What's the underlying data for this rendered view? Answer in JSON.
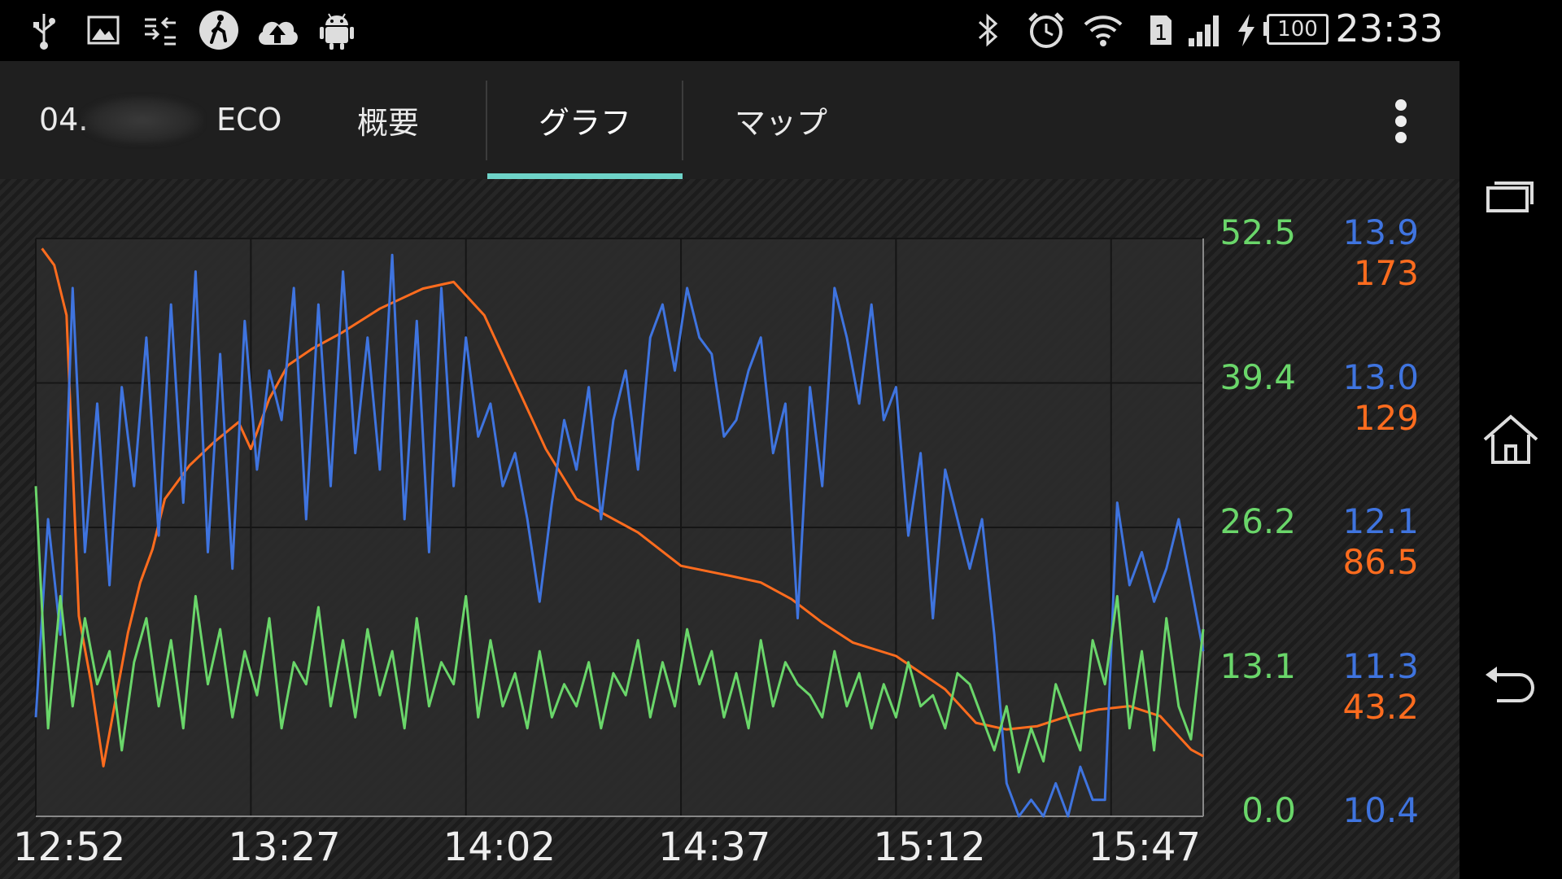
{
  "status_bar": {
    "time": "23:33",
    "battery": "100",
    "sim": "1",
    "icons_left": [
      "usb-icon",
      "image-icon",
      "data-sync-icon",
      "walk-icon",
      "cloud-upload-icon",
      "android-icon"
    ],
    "icons_right": [
      "bluetooth-icon",
      "alarm-icon",
      "wifi-icon",
      "sim-icon",
      "signal-icon",
      "charging-icon",
      "battery-icon"
    ]
  },
  "action_bar": {
    "id_text": "04.",
    "tabs": [
      {
        "label": "ECO"
      },
      {
        "label": "概要"
      },
      {
        "label": "グラフ"
      },
      {
        "label": "マップ"
      }
    ],
    "selected_tab": 2
  },
  "colors": {
    "green": "#6ad66a",
    "blue": "#3f74df",
    "orange": "#ff6c1e",
    "indicator": "#6ed3c8"
  },
  "chart_data": {
    "type": "line",
    "x_ticks": [
      "12:52",
      "13:27",
      "14:02",
      "14:37",
      "15:12",
      "15:47"
    ],
    "xlim": [
      "12:52",
      "16:02"
    ],
    "y_axes": [
      {
        "color": "green",
        "ticks": [
          "52.5",
          "39.4",
          "26.2",
          "13.1",
          "0.0"
        ],
        "range": [
          0,
          52.5
        ]
      },
      {
        "color": "blue",
        "ticks": [
          "13.9",
          "13.0",
          "12.1",
          "11.3",
          "10.4"
        ],
        "range": [
          10.4,
          13.9
        ]
      },
      {
        "color": "orange",
        "ticks": [
          "173",
          "129",
          "86.5",
          "43.2"
        ],
        "range": [
          0,
          173
        ]
      }
    ],
    "grid": true,
    "series": [
      {
        "color": "orange",
        "x": [
          "12:53",
          "12:55",
          "12:57",
          "12:59",
          "13:01",
          "13:03",
          "13:05",
          "13:07",
          "13:09",
          "13:11",
          "13:13",
          "13:17",
          "13:21",
          "13:25",
          "13:27",
          "13:30",
          "13:33",
          "13:37",
          "13:42",
          "13:48",
          "13:55",
          "14:00",
          "14:05",
          "14:10",
          "14:15",
          "14:20",
          "14:30",
          "14:37",
          "14:45",
          "14:50",
          "14:55",
          "15:00",
          "15:05",
          "15:12",
          "15:20",
          "15:25",
          "15:30",
          "15:35",
          "15:40",
          "15:45",
          "15:50",
          "15:55",
          "16:00",
          "16:02"
        ],
        "values": [
          170,
          165,
          150,
          60,
          40,
          15,
          35,
          55,
          70,
          80,
          95,
          105,
          112,
          118,
          110,
          125,
          135,
          140,
          145,
          152,
          158,
          160,
          150,
          130,
          110,
          95,
          85,
          75,
          72,
          70,
          65,
          58,
          52,
          48,
          38,
          28,
          26,
          27,
          30,
          32,
          33,
          30,
          20,
          18
        ]
      },
      {
        "color": "blue",
        "x": [
          "12:52",
          "12:54",
          "12:56",
          "12:58",
          "13:00",
          "13:02",
          "13:04",
          "13:06",
          "13:08",
          "13:10",
          "13:12",
          "13:14",
          "13:16",
          "13:18",
          "13:20",
          "13:22",
          "13:24",
          "13:26",
          "13:28",
          "13:30",
          "13:32",
          "13:34",
          "13:36",
          "13:38",
          "13:40",
          "13:42",
          "13:44",
          "13:46",
          "13:48",
          "13:50",
          "13:52",
          "13:54",
          "13:56",
          "13:58",
          "14:00",
          "14:02",
          "14:04",
          "14:06",
          "14:08",
          "14:10",
          "14:12",
          "14:14",
          "14:16",
          "14:18",
          "14:20",
          "14:22",
          "14:24",
          "14:26",
          "14:28",
          "14:30",
          "14:32",
          "14:34",
          "14:36",
          "14:38",
          "14:40",
          "14:42",
          "14:44",
          "14:46",
          "14:48",
          "14:50",
          "14:52",
          "14:54",
          "14:56",
          "14:58",
          "15:00",
          "15:02",
          "15:04",
          "15:06",
          "15:08",
          "15:10",
          "15:12",
          "15:14",
          "15:16",
          "15:18",
          "15:20",
          "15:22",
          "15:24",
          "15:26",
          "15:28",
          "15:30",
          "15:32",
          "15:34",
          "15:36",
          "15:38",
          "15:40",
          "15:42",
          "15:44",
          "15:46",
          "15:48",
          "15:50",
          "15:52",
          "15:54",
          "15:56",
          "15:58",
          "16:00",
          "16:02"
        ],
        "values": [
          11.0,
          12.2,
          11.5,
          13.6,
          12.0,
          12.9,
          11.8,
          13.0,
          12.4,
          13.3,
          12.1,
          13.5,
          12.3,
          13.7,
          12.0,
          13.2,
          11.9,
          13.4,
          12.5,
          13.1,
          12.8,
          13.6,
          12.2,
          13.5,
          12.4,
          13.7,
          12.6,
          13.3,
          12.5,
          13.8,
          12.2,
          13.4,
          12.0,
          13.6,
          12.4,
          13.3,
          12.7,
          12.9,
          12.4,
          12.6,
          12.2,
          11.7,
          12.3,
          12.8,
          12.5,
          13.0,
          12.2,
          12.8,
          13.1,
          12.5,
          13.3,
          13.5,
          13.1,
          13.6,
          13.3,
          13.2,
          12.7,
          12.8,
          13.1,
          13.3,
          12.6,
          12.9,
          11.6,
          13.0,
          12.4,
          13.6,
          13.3,
          12.9,
          13.5,
          12.8,
          13.0,
          12.1,
          12.6,
          11.6,
          12.5,
          12.2,
          11.9,
          12.2,
          11.5,
          10.6,
          10.4,
          10.5,
          10.4,
          10.6,
          10.4,
          10.7,
          10.5,
          10.5,
          12.3,
          11.8,
          12.0,
          11.7,
          11.9,
          12.2,
          11.8,
          11.4
        ]
      },
      {
        "color": "green",
        "x": [
          "12:52",
          "12:54",
          "12:56",
          "12:58",
          "13:00",
          "13:02",
          "13:04",
          "13:06",
          "13:08",
          "13:10",
          "13:12",
          "13:14",
          "13:16",
          "13:18",
          "13:20",
          "13:22",
          "13:24",
          "13:26",
          "13:28",
          "13:30",
          "13:32",
          "13:34",
          "13:36",
          "13:38",
          "13:40",
          "13:42",
          "13:44",
          "13:46",
          "13:48",
          "13:50",
          "13:52",
          "13:54",
          "13:56",
          "13:58",
          "14:00",
          "14:02",
          "14:04",
          "14:06",
          "14:08",
          "14:10",
          "14:12",
          "14:14",
          "14:16",
          "14:18",
          "14:20",
          "14:22",
          "14:24",
          "14:26",
          "14:28",
          "14:30",
          "14:32",
          "14:34",
          "14:36",
          "14:38",
          "14:40",
          "14:42",
          "14:44",
          "14:46",
          "14:48",
          "14:50",
          "14:52",
          "14:54",
          "14:56",
          "14:58",
          "15:00",
          "15:02",
          "15:04",
          "15:06",
          "15:08",
          "15:10",
          "15:12",
          "15:14",
          "15:16",
          "15:18",
          "15:20",
          "15:22",
          "15:24",
          "15:26",
          "15:28",
          "15:30",
          "15:32",
          "15:34",
          "15:36",
          "15:38",
          "15:40",
          "15:42",
          "15:44",
          "15:46",
          "15:48",
          "15:50",
          "15:52",
          "15:54",
          "15:56",
          "15:58",
          "16:00",
          "16:02"
        ],
        "values": [
          30,
          8,
          20,
          10,
          18,
          12,
          15,
          6,
          14,
          18,
          10,
          16,
          8,
          20,
          12,
          17,
          9,
          15,
          11,
          18,
          8,
          14,
          12,
          19,
          10,
          16,
          9,
          17,
          11,
          15,
          8,
          18,
          10,
          14,
          12,
          20,
          9,
          16,
          10,
          13,
          8,
          15,
          9,
          12,
          10,
          14,
          8,
          13,
          11,
          16,
          9,
          14,
          10,
          17,
          12,
          15,
          9,
          13,
          8,
          16,
          10,
          14,
          12,
          11,
          9,
          15,
          10,
          13,
          8,
          12,
          9,
          14,
          10,
          11,
          8,
          13,
          12,
          9,
          6,
          10,
          4,
          8,
          5,
          12,
          9,
          6,
          16,
          12,
          20,
          8,
          15,
          6,
          18,
          10,
          7,
          17
        ]
      }
    ]
  }
}
